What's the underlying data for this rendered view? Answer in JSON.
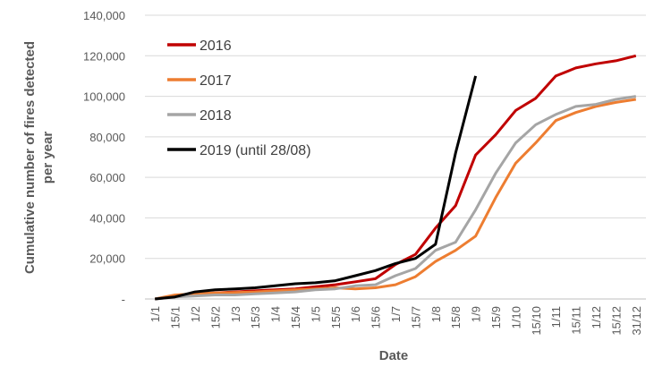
{
  "chart_data": {
    "type": "line",
    "y_label": [
      "Cumulative number of fires detected",
      "per year"
    ],
    "x_label": "Date",
    "categories": [
      "1/1",
      "15/1",
      "1/2",
      "15/2",
      "1/3",
      "15/3",
      "1/4",
      "15/4",
      "1/5",
      "15/5",
      "1/6",
      "15/6",
      "1/7",
      "15/7",
      "1/8",
      "15/8",
      "1/9",
      "15/9",
      "1/10",
      "15/10",
      "1/11",
      "15/11",
      "1/12",
      "15/12",
      "31/12"
    ],
    "series": [
      {
        "name": "2016",
        "color": "#c00000",
        "values": [
          0,
          1500,
          2500,
          3000,
          3500,
          4000,
          4500,
          5000,
          6000,
          7000,
          8500,
          10000,
          17000,
          22000,
          35000,
          46000,
          71000,
          81000,
          93000,
          99000,
          110000,
          114000,
          116000,
          117500,
          120000
        ]
      },
      {
        "name": "2017",
        "color": "#ed7d31",
        "values": [
          0,
          2000,
          2500,
          3000,
          3200,
          3500,
          4000,
          4500,
          5000,
          5500,
          5000,
          5500,
          7000,
          11000,
          18500,
          24000,
          31000,
          50000,
          67000,
          77000,
          88000,
          92000,
          95000,
          97000,
          98500
        ]
      },
      {
        "name": "2018",
        "color": "#a5a5a5",
        "values": [
          0,
          1000,
          1500,
          2000,
          2000,
          2500,
          3000,
          3500,
          4500,
          5000,
          6500,
          7000,
          11500,
          15000,
          24000,
          28000,
          44000,
          62000,
          77000,
          86000,
          91000,
          95000,
          96000,
          98500,
          100000
        ]
      },
      {
        "name": "2019 (until 28/08)",
        "color": "#000000",
        "values": [
          0,
          1000,
          3500,
          4500,
          5000,
          5500,
          6500,
          7500,
          8000,
          9000,
          11500,
          14000,
          17500,
          20000,
          27000,
          72000,
          110000,
          null,
          null,
          null,
          null,
          null,
          null,
          null,
          null
        ]
      }
    ],
    "ylim": [
      0,
      140000
    ],
    "yticks": [
      {
        "value": 0,
        "label": "-"
      },
      {
        "value": 20000,
        "label": "20,000"
      },
      {
        "value": 40000,
        "label": "40,000"
      },
      {
        "value": 60000,
        "label": "60,000"
      },
      {
        "value": 80000,
        "label": "80,000"
      },
      {
        "value": 100000,
        "label": "100,000"
      },
      {
        "value": 120000,
        "label": "120,000"
      },
      {
        "value": 140000,
        "label": "140,000"
      }
    ],
    "grid": true,
    "legend": "upper left"
  }
}
